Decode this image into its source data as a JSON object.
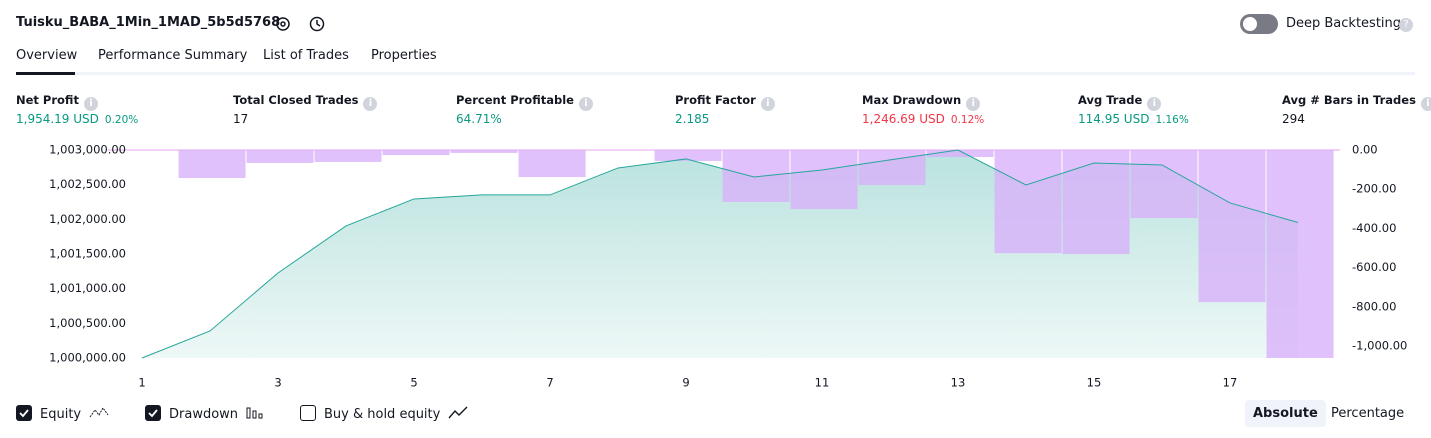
{
  "header": {
    "title": "Tuisku_BABA_1Min_1MAD_5b5d5768",
    "deep_backtesting": "Deep Backtesting"
  },
  "tabs": [
    "Overview",
    "Performance Summary",
    "List of Trades",
    "Properties"
  ],
  "metrics": [
    {
      "label": "Net Profit",
      "value": "1,954.19 USD",
      "percent": "0.20%",
      "tone": "positive"
    },
    {
      "label": "Total Closed Trades",
      "value": "17",
      "tone": "neutral"
    },
    {
      "label": "Percent Profitable",
      "value": "64.71%",
      "tone": "positive"
    },
    {
      "label": "Profit Factor",
      "value": "2.185",
      "tone": "positive"
    },
    {
      "label": "Max Drawdown",
      "value": "1,246.69 USD",
      "percent": "0.12%",
      "tone": "negative"
    },
    {
      "label": "Avg Trade",
      "value": "114.95 USD",
      "percent": "1.16%",
      "tone": "positive"
    },
    {
      "label": "Avg # Bars in Trades",
      "value": "294",
      "tone": "neutral"
    }
  ],
  "chart_data": {
    "type": "equity-drawdown",
    "x": [
      1,
      2,
      3,
      4,
      5,
      6,
      7,
      8,
      9,
      10,
      11,
      12,
      13,
      14,
      15,
      16,
      17,
      18
    ],
    "xlim": [
      1,
      18
    ],
    "xticks": [
      1,
      3,
      5,
      7,
      9,
      11,
      13,
      15,
      17
    ],
    "ylim": [
      1000000,
      1003000
    ],
    "yticks": [
      {
        "value": 1000000,
        "label": "1,000,000.00"
      },
      {
        "value": 1000500,
        "label": "1,000,500.00"
      },
      {
        "value": 1001000,
        "label": "1,001,000.00"
      },
      {
        "value": 1001500,
        "label": "1,001,500.00"
      },
      {
        "value": 1002000,
        "label": "1,002,000.00"
      },
      {
        "value": 1002500,
        "label": "1,002,500.00"
      },
      {
        "value": 1003000,
        "label": "1,003,000.00"
      }
    ],
    "y2lim": [
      -1061,
      0
    ],
    "y2ticks": [
      {
        "value": 0,
        "label": "0.00"
      },
      {
        "value": -200,
        "label": "-200.00"
      },
      {
        "value": -400,
        "label": "-400.00"
      },
      {
        "value": -600,
        "label": "-600.00"
      },
      {
        "value": -800,
        "label": "-800.00"
      },
      {
        "value": -1000,
        "label": "-1,000.00"
      }
    ],
    "series": [
      {
        "name": "Equity",
        "color": "#26a69a",
        "shown": true,
        "values": [
          1000000,
          1000390,
          1001226,
          1001905,
          1002294,
          1002352,
          1002352,
          1002741,
          1002871,
          1002611,
          1002712,
          1002857,
          1003000,
          1002496,
          1002813,
          1002784,
          1002236,
          1001954.19
        ]
      },
      {
        "name": "Drawdown",
        "color": "#d8b0fa",
        "shown": true,
        "axis": "y2",
        "values": [
          0,
          -143,
          -66,
          -61,
          -26,
          -15,
          -138,
          0,
          -56,
          -265,
          -301,
          -179,
          -36,
          -526,
          -531,
          -347,
          -776,
          -1061
        ]
      }
    ],
    "benchmark": {
      "name": "Buy & hold equity",
      "shown": false
    }
  },
  "modes": [
    {
      "label": "Absolute",
      "active": true
    },
    {
      "label": "Percentage",
      "active": false
    }
  ]
}
